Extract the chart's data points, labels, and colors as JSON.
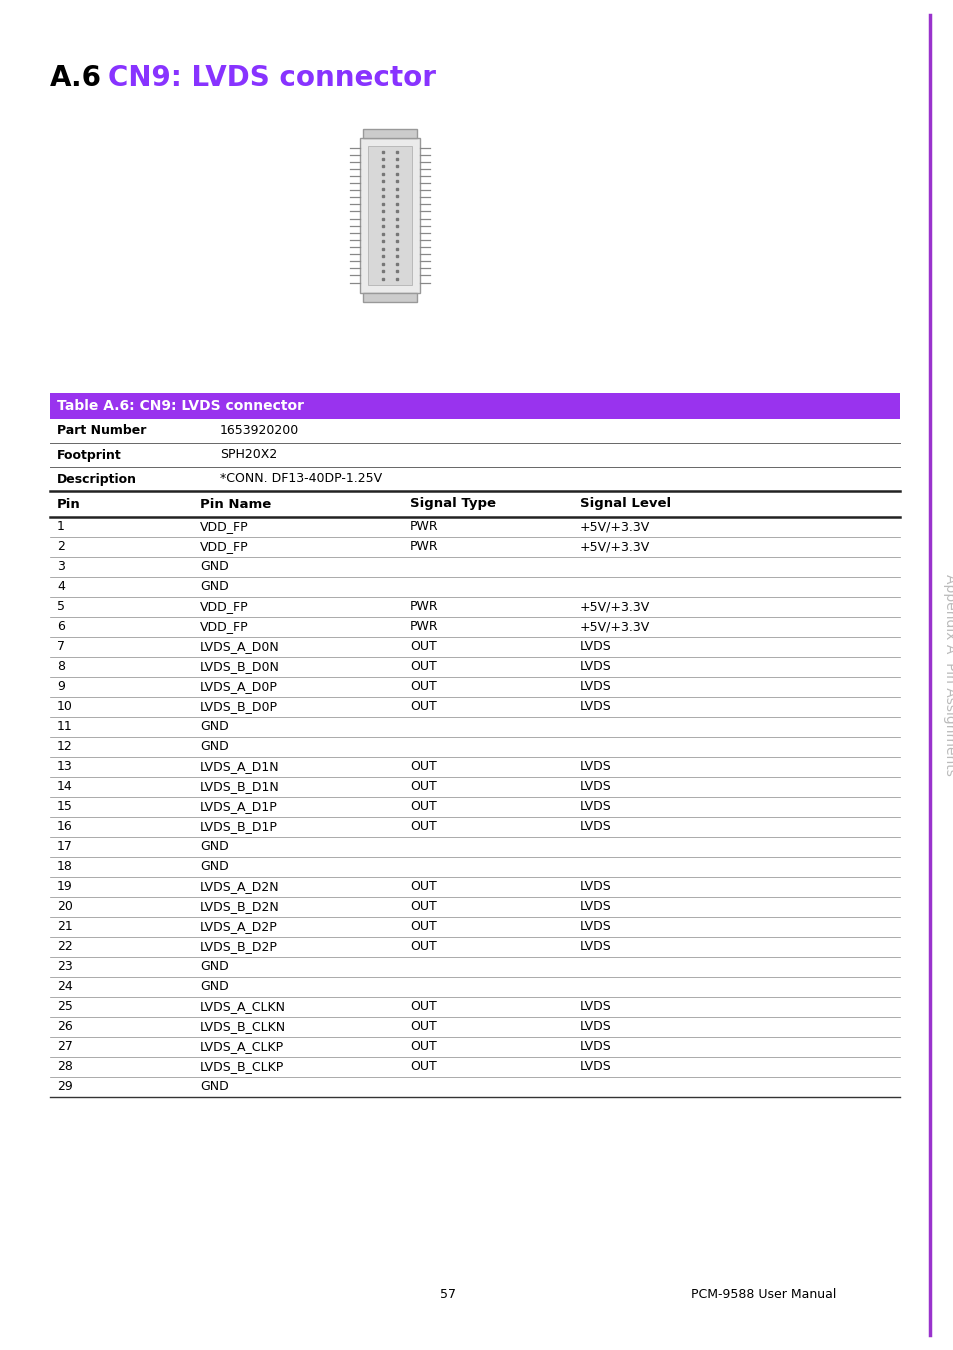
{
  "page_title_prefix": "A.6",
  "page_title_text": "CN9: LVDS connector",
  "sidebar_text": "Appendix A  Pin Assignments",
  "table_header": "Table A.6: CN9: LVDS connector",
  "table_header_bg": "#9933EE",
  "table_header_text_color": "#FFFFFF",
  "meta_rows": [
    [
      "Part Number",
      "1653920200"
    ],
    [
      "Footprint",
      "SPH20X2"
    ],
    [
      "Description",
      "*CONN. DF13-40DP-1.25V"
    ]
  ],
  "col_headers": [
    "Pin",
    "Pin Name",
    "Signal Type",
    "Signal Level"
  ],
  "pin_data": [
    [
      "1",
      "VDD_FP",
      "PWR",
      "+5V/+3.3V"
    ],
    [
      "2",
      "VDD_FP",
      "PWR",
      "+5V/+3.3V"
    ],
    [
      "3",
      "GND",
      "",
      ""
    ],
    [
      "4",
      "GND",
      "",
      ""
    ],
    [
      "5",
      "VDD_FP",
      "PWR",
      "+5V/+3.3V"
    ],
    [
      "6",
      "VDD_FP",
      "PWR",
      "+5V/+3.3V"
    ],
    [
      "7",
      "LVDS_A_D0N",
      "OUT",
      "LVDS"
    ],
    [
      "8",
      "LVDS_B_D0N",
      "OUT",
      "LVDS"
    ],
    [
      "9",
      "LVDS_A_D0P",
      "OUT",
      "LVDS"
    ],
    [
      "10",
      "LVDS_B_D0P",
      "OUT",
      "LVDS"
    ],
    [
      "11",
      "GND",
      "",
      ""
    ],
    [
      "12",
      "GND",
      "",
      ""
    ],
    [
      "13",
      "LVDS_A_D1N",
      "OUT",
      "LVDS"
    ],
    [
      "14",
      "LVDS_B_D1N",
      "OUT",
      "LVDS"
    ],
    [
      "15",
      "LVDS_A_D1P",
      "OUT",
      "LVDS"
    ],
    [
      "16",
      "LVDS_B_D1P",
      "OUT",
      "LVDS"
    ],
    [
      "17",
      "GND",
      "",
      ""
    ],
    [
      "18",
      "GND",
      "",
      ""
    ],
    [
      "19",
      "LVDS_A_D2N",
      "OUT",
      "LVDS"
    ],
    [
      "20",
      "LVDS_B_D2N",
      "OUT",
      "LVDS"
    ],
    [
      "21",
      "LVDS_A_D2P",
      "OUT",
      "LVDS"
    ],
    [
      "22",
      "LVDS_B_D2P",
      "OUT",
      "LVDS"
    ],
    [
      "23",
      "GND",
      "",
      ""
    ],
    [
      "24",
      "GND",
      "",
      ""
    ],
    [
      "25",
      "LVDS_A_CLKN",
      "OUT",
      "LVDS"
    ],
    [
      "26",
      "LVDS_B_CLKN",
      "OUT",
      "LVDS"
    ],
    [
      "27",
      "LVDS_A_CLKP",
      "OUT",
      "LVDS"
    ],
    [
      "28",
      "LVDS_B_CLKP",
      "OUT",
      "LVDS"
    ],
    [
      "29",
      "GND",
      "",
      ""
    ]
  ],
  "footer_page": "57",
  "footer_right": "PCM-9588 User Manual",
  "bg_color": "#FFFFFF",
  "title_prefix_color": "#000000",
  "title_main_color": "#8833FF",
  "sidebar_line_color": "#9933CC",
  "sidebar_text_color": "#BBBBBB"
}
